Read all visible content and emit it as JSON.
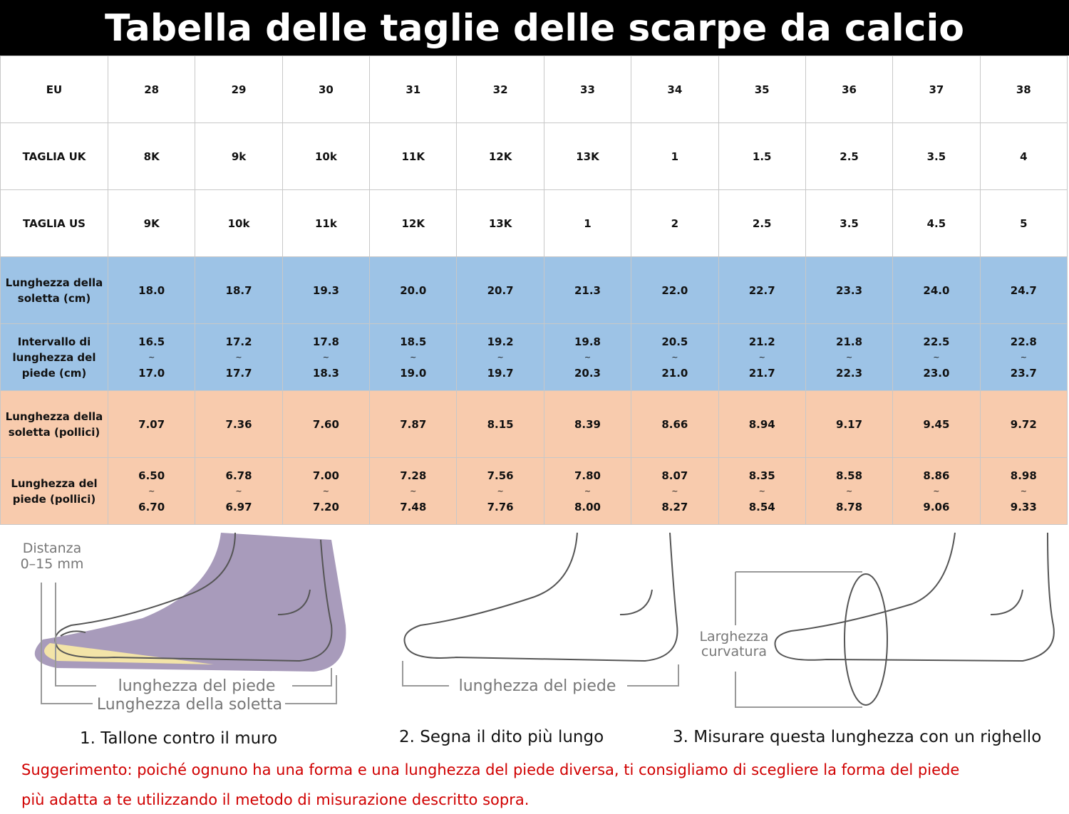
{
  "header": {
    "title": "Tabella delle taglie delle scarpe da calcio"
  },
  "table": {
    "rows": [
      {
        "label": "EU",
        "cells": [
          [
            "28"
          ],
          [
            "29"
          ],
          [
            "30"
          ],
          [
            "31"
          ],
          [
            "32"
          ],
          [
            "33"
          ],
          [
            "34"
          ],
          [
            "35"
          ],
          [
            "36"
          ],
          [
            "37"
          ],
          [
            "38"
          ]
        ]
      },
      {
        "label": "TAGLIA UK",
        "cells": [
          [
            "8K"
          ],
          [
            "9k"
          ],
          [
            "10k"
          ],
          [
            "11K"
          ],
          [
            "12K"
          ],
          [
            "13K"
          ],
          [
            "1"
          ],
          [
            "1.5"
          ],
          [
            "2.5"
          ],
          [
            "3.5"
          ],
          [
            "4"
          ]
        ]
      },
      {
        "label": "TAGLIA US",
        "cells": [
          [
            "9K"
          ],
          [
            "10k"
          ],
          [
            "11k"
          ],
          [
            "12K"
          ],
          [
            "13K"
          ],
          [
            "1"
          ],
          [
            "2"
          ],
          [
            "2.5"
          ],
          [
            "3.5"
          ],
          [
            "4.5"
          ],
          [
            "5"
          ]
        ]
      },
      {
        "label": "Lunghezza della soletta (cm)",
        "cells": [
          [
            "18.0"
          ],
          [
            "18.7"
          ],
          [
            "19.3"
          ],
          [
            "20.0"
          ],
          [
            "20.7"
          ],
          [
            "21.3"
          ],
          [
            "22.0"
          ],
          [
            "22.7"
          ],
          [
            "23.3"
          ],
          [
            "24.0"
          ],
          [
            "24.7"
          ]
        ]
      },
      {
        "label": "Intervallo di lunghezza del piede (cm)",
        "cells": [
          [
            "16.5",
            "~",
            "17.0"
          ],
          [
            "17.2",
            "~",
            "17.7"
          ],
          [
            "17.8",
            "~",
            "18.3"
          ],
          [
            "18.5",
            "~",
            "19.0"
          ],
          [
            "19.2",
            "~",
            "19.7"
          ],
          [
            "19.8",
            "~",
            "20.3"
          ],
          [
            "20.5",
            "~",
            "21.0"
          ],
          [
            "21.2",
            "~",
            "21.7"
          ],
          [
            "21.8",
            "~",
            "22.3"
          ],
          [
            "22.5",
            "~",
            "23.0"
          ],
          [
            "22.8",
            "~",
            "23.7"
          ]
        ]
      },
      {
        "label": "Lunghezza della soletta (pollici)",
        "cells": [
          [
            "7.07"
          ],
          [
            "7.36"
          ],
          [
            "7.60"
          ],
          [
            "7.87"
          ],
          [
            "8.15"
          ],
          [
            "8.39"
          ],
          [
            "8.66"
          ],
          [
            "8.94"
          ],
          [
            "9.17"
          ],
          [
            "9.45"
          ],
          [
            "9.72"
          ]
        ]
      },
      {
        "label": "Lunghezza del piede (pollici)",
        "cells": [
          [
            "6.50",
            "~",
            "6.70"
          ],
          [
            "6.78",
            "~",
            "6.97"
          ],
          [
            "7.00",
            "~",
            "7.20"
          ],
          [
            "7.28",
            "~",
            "7.48"
          ],
          [
            "7.56",
            "~",
            "7.76"
          ],
          [
            "7.80",
            "~",
            "8.00"
          ],
          [
            "8.07",
            "~",
            "8.27"
          ],
          [
            "8.35",
            "~",
            "8.54"
          ],
          [
            "8.58",
            "~",
            "8.78"
          ],
          [
            "8.86",
            "~",
            "9.06"
          ],
          [
            "8.98",
            "~",
            "9.33"
          ]
        ]
      }
    ]
  },
  "illustrations": {
    "distance": [
      "Distanza",
      "0–15 mm"
    ],
    "foot_length_1": "lunghezza del piede",
    "insole_length": "Lunghezza della soletta",
    "foot_length_2": "lunghezza del piede",
    "width": [
      "Larghezza",
      "curvatura"
    ]
  },
  "steps": [
    "1. Tallone contro il muro",
    "2. Segna il dito più lungo",
    "3. Misurare questa lunghezza con un righello"
  ],
  "suggestion": [
    "Suggerimento: poiché ognuno ha una forma e una lunghezza del piede diversa, ti consigliamo di scegliere la forma del piede",
    "più adatta a te utilizzando il metodo di misurazione descritto sopra."
  ]
}
